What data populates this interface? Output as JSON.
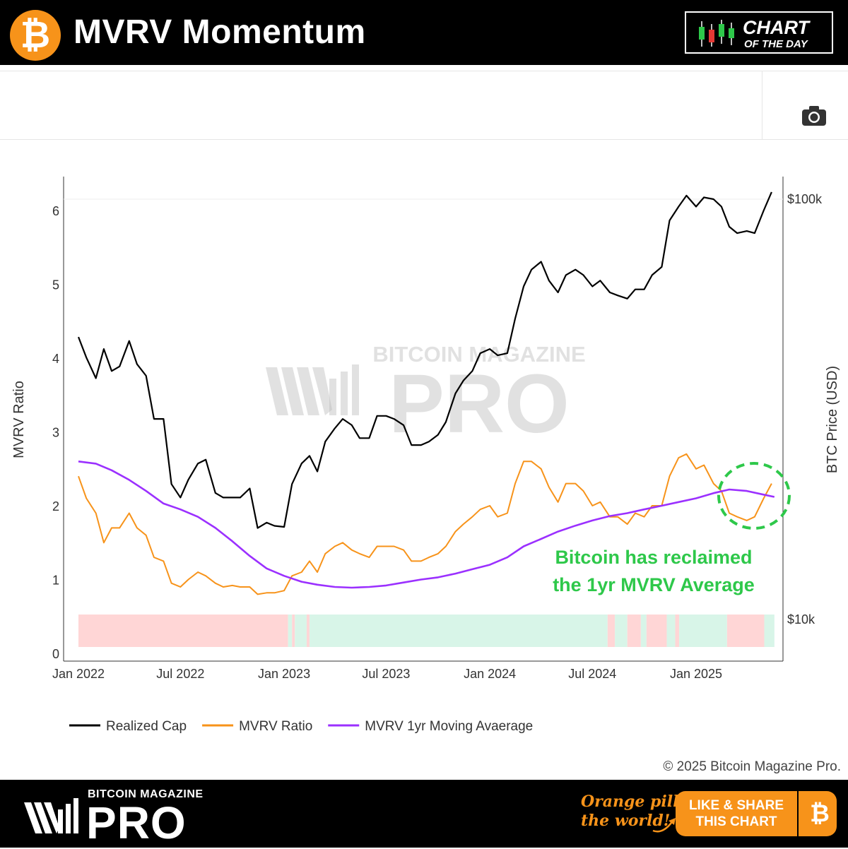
{
  "header": {
    "title": "MVRV Momentum",
    "btc_symbol": "₿",
    "badge_line1": "CHART",
    "badge_line2": "OF THE DAY"
  },
  "toolbar": {
    "camera_icon": "camera-icon"
  },
  "chart_data": {
    "type": "line",
    "x_ticks": [
      "Jan 2022",
      "Jul 2022",
      "Jan 2023",
      "Jul 2023",
      "Jan 2024",
      "Jul 2024",
      "Jan 2025"
    ],
    "y_left": {
      "label": "MVRV Ratio",
      "range": [
        0,
        6.3
      ],
      "ticks": [
        0,
        1,
        2,
        3,
        4,
        5,
        6
      ]
    },
    "y_right": {
      "label": "BTC Price (USD)",
      "scale": "log",
      "ticks": [
        "$10k",
        "$100k"
      ]
    },
    "series": [
      {
        "name": "Realized Cap",
        "color": "#000000",
        "axis": "right",
        "x": [
          "2022-01-01",
          "2022-01-15",
          "2022-02-01",
          "2022-02-15",
          "2022-03-01",
          "2022-03-15",
          "2022-04-01",
          "2022-04-15",
          "2022-05-01",
          "2022-05-15",
          "2022-06-01",
          "2022-06-15",
          "2022-07-01",
          "2022-07-15",
          "2022-08-01",
          "2022-08-15",
          "2022-09-01",
          "2022-09-15",
          "2022-10-01",
          "2022-10-15",
          "2022-11-01",
          "2022-11-15",
          "2022-12-01",
          "2022-12-15",
          "2023-01-01",
          "2023-01-15",
          "2023-02-01",
          "2023-02-15",
          "2023-03-01",
          "2023-03-15",
          "2023-04-01",
          "2023-04-15",
          "2023-05-01",
          "2023-05-15",
          "2023-06-01",
          "2023-06-15",
          "2023-07-01",
          "2023-07-15",
          "2023-08-01",
          "2023-08-15",
          "2023-09-01",
          "2023-09-15",
          "2023-10-01",
          "2023-10-15",
          "2023-11-01",
          "2023-11-15",
          "2023-12-01",
          "2023-12-15",
          "2024-01-01",
          "2024-01-15",
          "2024-02-01",
          "2024-02-15",
          "2024-03-01",
          "2024-03-15",
          "2024-04-01",
          "2024-04-15",
          "2024-05-01",
          "2024-05-15",
          "2024-06-01",
          "2024-06-15",
          "2024-07-01",
          "2024-07-15",
          "2024-08-01",
          "2024-08-15",
          "2024-09-01",
          "2024-09-15",
          "2024-10-01",
          "2024-10-15",
          "2024-11-01",
          "2024-11-15",
          "2024-12-01",
          "2024-12-15",
          "2025-01-01",
          "2025-01-15",
          "2025-02-01",
          "2025-02-15",
          "2025-03-01",
          "2025-03-15",
          "2025-04-01",
          "2025-04-15",
          "2025-05-01",
          "2025-05-15"
        ],
        "values": [
          47000,
          42000,
          37500,
          44000,
          39000,
          40000,
          46000,
          40500,
          38000,
          30000,
          30000,
          21000,
          19500,
          21500,
          23500,
          24000,
          20000,
          19500,
          19500,
          19500,
          20500,
          16500,
          17000,
          16700,
          16600,
          21000,
          23500,
          24500,
          22500,
          26500,
          28500,
          30000,
          29000,
          27000,
          27000,
          30500,
          30500,
          30000,
          29000,
          26000,
          26000,
          26500,
          27500,
          29500,
          34500,
          37000,
          39000,
          43000,
          44000,
          42500,
          43000,
          52000,
          62000,
          68000,
          71000,
          64000,
          60000,
          66000,
          68000,
          66000,
          62000,
          64000,
          60000,
          59000,
          58000,
          61000,
          61000,
          66000,
          69000,
          89000,
          96000,
          102000,
          96000,
          101000,
          100000,
          96000,
          86000,
          83000,
          84000,
          83000,
          94000,
          104000
        ]
      },
      {
        "name": "MVRV Ratio",
        "color": "#f7931a",
        "axis": "left",
        "x": [
          "2022-01-01",
          "2022-01-15",
          "2022-02-01",
          "2022-02-15",
          "2022-03-01",
          "2022-03-15",
          "2022-04-01",
          "2022-04-15",
          "2022-05-01",
          "2022-05-15",
          "2022-06-01",
          "2022-06-15",
          "2022-07-01",
          "2022-07-15",
          "2022-08-01",
          "2022-08-15",
          "2022-09-01",
          "2022-09-15",
          "2022-10-01",
          "2022-10-15",
          "2022-11-01",
          "2022-11-15",
          "2022-12-01",
          "2022-12-15",
          "2023-01-01",
          "2023-01-15",
          "2023-02-01",
          "2023-02-15",
          "2023-03-01",
          "2023-03-15",
          "2023-04-01",
          "2023-04-15",
          "2023-05-01",
          "2023-05-15",
          "2023-06-01",
          "2023-06-15",
          "2023-07-01",
          "2023-07-15",
          "2023-08-01",
          "2023-08-15",
          "2023-09-01",
          "2023-09-15",
          "2023-10-01",
          "2023-10-15",
          "2023-11-01",
          "2023-11-15",
          "2023-12-01",
          "2023-12-15",
          "2024-01-01",
          "2024-01-15",
          "2024-02-01",
          "2024-02-15",
          "2024-03-01",
          "2024-03-15",
          "2024-04-01",
          "2024-04-15",
          "2024-05-01",
          "2024-05-15",
          "2024-06-01",
          "2024-06-15",
          "2024-07-01",
          "2024-07-15",
          "2024-08-01",
          "2024-08-15",
          "2024-09-01",
          "2024-09-15",
          "2024-10-01",
          "2024-10-15",
          "2024-11-01",
          "2024-11-15",
          "2024-12-01",
          "2024-12-15",
          "2025-01-01",
          "2025-01-15",
          "2025-02-01",
          "2025-02-15",
          "2025-03-01",
          "2025-03-15",
          "2025-04-01",
          "2025-04-15",
          "2025-05-01",
          "2025-05-15"
        ],
        "values": [
          2.4,
          2.1,
          1.9,
          1.5,
          1.7,
          1.7,
          1.9,
          1.7,
          1.6,
          1.3,
          1.25,
          0.95,
          0.9,
          1.0,
          1.1,
          1.05,
          0.95,
          0.9,
          0.92,
          0.9,
          0.9,
          0.8,
          0.82,
          0.82,
          0.85,
          1.05,
          1.1,
          1.25,
          1.1,
          1.35,
          1.45,
          1.5,
          1.4,
          1.35,
          1.3,
          1.45,
          1.45,
          1.45,
          1.4,
          1.25,
          1.25,
          1.3,
          1.35,
          1.45,
          1.65,
          1.75,
          1.85,
          1.95,
          2.0,
          1.85,
          1.9,
          2.3,
          2.6,
          2.6,
          2.5,
          2.25,
          2.05,
          2.3,
          2.3,
          2.2,
          2.0,
          2.05,
          1.85,
          1.85,
          1.75,
          1.9,
          1.85,
          2.0,
          2.0,
          2.4,
          2.65,
          2.7,
          2.5,
          2.55,
          2.3,
          2.2,
          1.9,
          1.85,
          1.8,
          1.85,
          2.1,
          2.3
        ]
      },
      {
        "name": "MVRV 1yr Moving Avaerage",
        "color": "#9b30ff",
        "axis": "left",
        "x": [
          "2022-01-01",
          "2022-02-01",
          "2022-03-01",
          "2022-04-01",
          "2022-05-01",
          "2022-06-01",
          "2022-07-01",
          "2022-08-01",
          "2022-09-01",
          "2022-10-01",
          "2022-11-01",
          "2022-12-01",
          "2023-01-01",
          "2023-02-01",
          "2023-03-01",
          "2023-04-01",
          "2023-05-01",
          "2023-06-01",
          "2023-07-01",
          "2023-08-01",
          "2023-09-01",
          "2023-10-01",
          "2023-11-01",
          "2023-12-01",
          "2024-01-01",
          "2024-02-01",
          "2024-03-01",
          "2024-04-01",
          "2024-05-01",
          "2024-06-01",
          "2024-07-01",
          "2024-08-01",
          "2024-09-01",
          "2024-10-01",
          "2024-11-01",
          "2024-12-01",
          "2025-01-01",
          "2025-02-01",
          "2025-03-01",
          "2025-04-01",
          "2025-05-01",
          "2025-05-20"
        ],
        "values": [
          2.6,
          2.57,
          2.48,
          2.35,
          2.2,
          2.03,
          1.95,
          1.85,
          1.7,
          1.52,
          1.32,
          1.15,
          1.05,
          0.97,
          0.93,
          0.9,
          0.89,
          0.9,
          0.92,
          0.96,
          1.0,
          1.03,
          1.08,
          1.14,
          1.2,
          1.3,
          1.45,
          1.55,
          1.65,
          1.73,
          1.8,
          1.86,
          1.9,
          1.95,
          2.0,
          2.05,
          2.1,
          2.17,
          2.22,
          2.2,
          2.15,
          2.12
        ]
      }
    ],
    "regime_band": {
      "colors": {
        "below": "#ffd6d6",
        "above": "#d8f5e8"
      },
      "segments": [
        [
          "2022-01-01",
          "2023-01-08",
          "below"
        ],
        [
          "2023-01-08",
          "2023-01-15",
          "above"
        ],
        [
          "2023-01-15",
          "2023-01-20",
          "below"
        ],
        [
          "2023-01-20",
          "2023-02-10",
          "above"
        ],
        [
          "2023-02-10",
          "2023-02-15",
          "below"
        ],
        [
          "2023-02-15",
          "2024-07-28",
          "above"
        ],
        [
          "2024-07-28",
          "2024-08-10",
          "below"
        ],
        [
          "2024-08-10",
          "2024-09-01",
          "above"
        ],
        [
          "2024-09-01",
          "2024-09-25",
          "below"
        ],
        [
          "2024-09-25",
          "2024-10-05",
          "above"
        ],
        [
          "2024-10-05",
          "2024-11-10",
          "below"
        ],
        [
          "2024-11-10",
          "2024-11-25",
          "above"
        ],
        [
          "2024-11-25",
          "2024-12-02",
          "below"
        ],
        [
          "2024-12-02",
          "2025-02-25",
          "above"
        ],
        [
          "2025-02-25",
          "2025-05-02",
          "below"
        ],
        [
          "2025-05-02",
          "2025-05-20",
          "above"
        ]
      ]
    },
    "annotation": {
      "line1": "Bitcoin has reclaimed",
      "line2": "the 1yr MVRV Average",
      "color": "#2ec84a"
    },
    "watermark": {
      "top": "BITCOIN MAGAZINE",
      "big": "PRO"
    },
    "legend_position": "bottom-left",
    "grid": false,
    "copyright": "© 2025 Bitcoin Magazine Pro."
  },
  "footer": {
    "brand_small": "BITCOIN MAGAZINE",
    "brand_big": "PRO",
    "slogan_line1": "Orange pill",
    "slogan_line2": "the world!",
    "share_line1": "LIKE & SHARE",
    "share_line2": "THIS CHART",
    "btc_symbol": "₿"
  }
}
